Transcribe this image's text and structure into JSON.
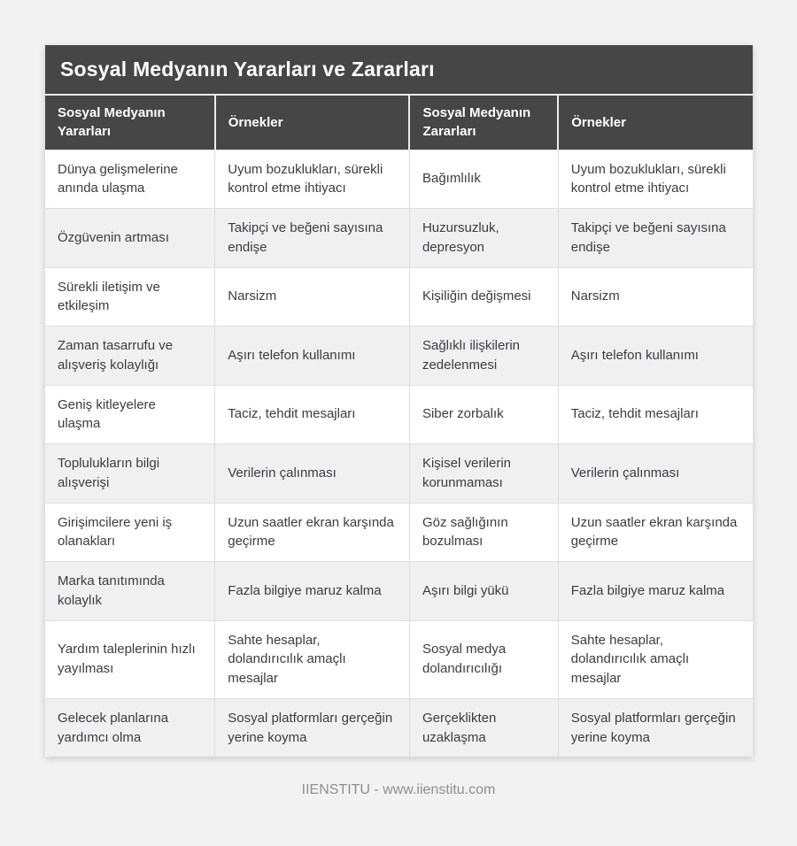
{
  "header": {
    "title": "Sosyal Medyanın Yararları ve Zararları"
  },
  "footer": {
    "credit": "IIENSTITU - www.iienstitu.com"
  },
  "colors": {
    "page_bg": "#f2f2f3",
    "header_bg": "#464646",
    "header_text": "#ffffff",
    "body_text": "#3b3b45",
    "row_alt_bg": "#f0f0f0",
    "cell_border": "#dcdcdc",
    "footer_text": "#8e8e8e"
  },
  "chart_data": {
    "type": "table",
    "title": "Sosyal Medyanın Yararları ve Zararları",
    "columns": [
      "Sosyal Medyanın Yararları",
      "Örnekler",
      "Sosyal Medyanın Zararları",
      "Örnekler"
    ],
    "rows": [
      [
        "Dünya gelişmelerine anında ulaşma",
        "Uyum bozuklukları, sürekli kontrol etme ihtiyacı",
        "Bağımlılık",
        "Uyum bozuklukları, sürekli kontrol etme ihtiyacı"
      ],
      [
        "Özgüvenin artması",
        "Takipçi ve beğeni sayısına endişe",
        "Huzursuzluk, depresyon",
        "Takipçi ve beğeni sayısına endişe"
      ],
      [
        "Sürekli iletişim ve etkileşim",
        "Narsizm",
        "Kişiliğin değişmesi",
        "Narsizm"
      ],
      [
        "Zaman tasarrufu ve alışveriş kolaylığı",
        "Aşırı telefon kullanımı",
        "Sağlıklı ilişkilerin zedelenmesi",
        "Aşırı telefon kullanımı"
      ],
      [
        "Geniş kitleyelere ulaşma",
        "Taciz, tehdit mesajları",
        "Siber zorbalık",
        "Taciz, tehdit mesajları"
      ],
      [
        "Toplulukların bilgi alışverişi",
        "Verilerin çalınması",
        "Kişisel verilerin korunmaması",
        "Verilerin çalınması"
      ],
      [
        "Girişimcilere yeni iş olanakları",
        "Uzun saatler ekran karşında geçirme",
        "Göz sağlığının bozulması",
        "Uzun saatler ekran karşında geçirme"
      ],
      [
        "Marka tanıtımında kolaylık",
        "Fazla bilgiye maruz kalma",
        "Aşırı bilgi yükü",
        "Fazla bilgiye maruz kalma"
      ],
      [
        "Yardım taleplerinin hızlı yayılması",
        "Sahte hesaplar, dolandırıcılık amaçlı mesajlar",
        "Sosyal medya dolandırıcılığı",
        "Sahte hesaplar, dolandırıcılık amaçlı mesajlar"
      ],
      [
        "Gelecek planlarına yardımcı olma",
        "Sosyal platformları gerçeğin yerine koyma",
        "Gerçeklikten uzaklaşma",
        "Sosyal platformları gerçeğin yerine koyma"
      ]
    ],
    "layout": {
      "column_width_percents": [
        24,
        27.5,
        21,
        27.5
      ],
      "row_striping": "white / light-gray alternating",
      "legend_position": "none"
    }
  }
}
